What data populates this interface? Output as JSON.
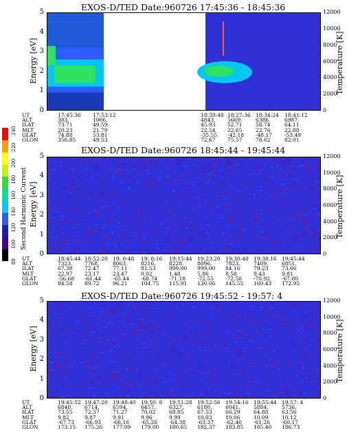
{
  "chart_data": [
    {
      "type": "heatmap",
      "title": "EXOS-D/TED  Date:960726  17:45:36 - 18:45:36",
      "ylabel": "Energy [eV]",
      "y2label": "Temperature [K]",
      "ylim": [
        0,
        5
      ],
      "y2lim": [
        0,
        12000
      ],
      "yticks": [
        "0",
        "1",
        "2",
        "3",
        "4",
        "5"
      ],
      "y2ticks": [
        "0",
        "2000",
        "4000",
        "6000",
        "8000",
        "10000",
        "12000"
      ],
      "gap": true,
      "orbit": {
        "labels": [
          "UT",
          "ALT",
          "ILAT",
          "MLT",
          "GLAT",
          "GLON"
        ],
        "columns": [
          [
            "17:45:36",
            "383.",
            "73.71",
            "20.23",
            "74.88",
            "356.85"
          ],
          [
            "17:53:12",
            "1006.",
            "49.59",
            "21.79",
            "53.81",
            "49.53"
          ],
          [
            "18:20:48",
            "4843.",
            "45.93",
            "22.54",
            "-35.55",
            "72.67"
          ],
          [
            "18:27:36",
            "5669.",
            "52.71",
            "22.65",
            "-42.18",
            "75.57"
          ],
          [
            "18:34:24",
            "6386.",
            "58.74",
            "22.76",
            "-48.17",
            "78.62"
          ],
          [
            "18:41:12",
            "6987.",
            "64.11",
            "22.88",
            "-53.49",
            "82.01"
          ]
        ]
      }
    },
    {
      "type": "heatmap",
      "title": "EXOS-D/TED  Date:960726  18:45:44 - 19:45:44",
      "ylabel": "Energy [eV]",
      "y2label": "Temperature [K]",
      "ylim": [
        0,
        5
      ],
      "y2lim": [
        0,
        12000
      ],
      "yticks": [
        "0",
        "1",
        "2",
        "3",
        "4",
        "5"
      ],
      "y2ticks": [
        "0",
        "2000",
        "4000",
        "6000",
        "8000",
        "10000",
        "12000"
      ],
      "gap": false,
      "orbit": {
        "labels": [
          "UT",
          "ALT",
          "ILAT",
          "MLT",
          "GLAT",
          "GLON"
        ],
        "columns": [
          [
            "18:45:44",
            "7323.",
            "67.38",
            "22.97",
            "-56.68",
            "84.58"
          ],
          [
            "18:52:20",
            "7768.",
            "72.47",
            "23.17",
            "-61.44",
            "89.72"
          ],
          [
            "19: 0:48",
            "8063.",
            "77.11",
            "23.47",
            "-65.44",
            "96.21"
          ],
          [
            "19: 8:16",
            "8216.",
            "81.53",
            "0.02",
            "-68.74",
            "104.75"
          ],
          [
            "19:15:44",
            "8228.",
            "999.00",
            "1.48",
            "-71.18",
            "115.91"
          ],
          [
            "19:23:20",
            "8096.",
            "999.00",
            "5.86",
            "-72.55",
            "130.06"
          ],
          [
            "19:30:48",
            "7823.",
            "84.16",
            "8.58",
            "-72.50",
            "145.55"
          ],
          [
            "19:38:16",
            "7409.",
            "79.23",
            "9.43",
            "-70.92",
            "160.43"
          ],
          [
            "19:45:44",
            "6851.",
            "73.66",
            "9.81",
            "-67.80",
            "172.95"
          ]
        ]
      }
    },
    {
      "type": "heatmap",
      "title": "EXOS-D/TED  Date:960726  19:45:52 - 19:57: 4",
      "ylabel": "Energy [eV]",
      "y2label": "Temperature [K]",
      "ylim": [
        0,
        5
      ],
      "y2lim": [
        0,
        12000
      ],
      "yticks": [
        "0",
        "1",
        "2",
        "3",
        "4",
        "5"
      ],
      "y2ticks": [
        "0",
        "2000",
        "4000",
        "6000",
        "8000",
        "10000",
        "12000"
      ],
      "gap": false,
      "orbit": {
        "labels": [
          "UT",
          "ALT",
          "ILAT",
          "MLT",
          "GLAT",
          "GLON"
        ],
        "columns": [
          [
            "19:45:52",
            "6840.",
            "73.55",
            "9.82",
            "-67.73",
            "173.15"
          ],
          [
            "19:47:20",
            "6714.",
            "72.37",
            "9.87",
            "-66.93",
            "175.26"
          ],
          [
            "19:48:40",
            "6594.",
            "71.27",
            "9.91",
            "-66.16",
            "177.09"
          ],
          [
            "19:50: 8",
            "6457.",
            "70.02",
            "9.96",
            "-65.26",
            "179.00"
          ],
          [
            "19:51:28",
            "6327.",
            "68.85",
            "9.99",
            "-64.38",
            "180.65"
          ],
          [
            "19:52:56",
            "6180.",
            "67.53",
            "10.03",
            "-63.37",
            "182.37"
          ],
          [
            "19:54:16",
            "6041.",
            "66.29",
            "10.06",
            "-62.40",
            "183.85"
          ],
          [
            "19:55:44",
            "5884.",
            "64.88",
            "10.09",
            "-61.26",
            "185.40"
          ],
          [
            "19:57: 4",
            "5736.",
            "63.56",
            "10.12",
            "-60.17",
            "186.73"
          ]
        ]
      }
    }
  ],
  "colorbar": {
    "label": "Second Harmonic Current",
    "ticks": [
      "80",
      "100",
      "120",
      "140",
      "160",
      "180",
      "200",
      "220",
      "240"
    ],
    "colors": [
      "#000000",
      "#4b0082",
      "#1c1cb0",
      "#2a5cff",
      "#00c8ff",
      "#00e0a0",
      "#30e030",
      "#c8f000",
      "#ffff00",
      "#ffa000",
      "#ff0000"
    ]
  }
}
